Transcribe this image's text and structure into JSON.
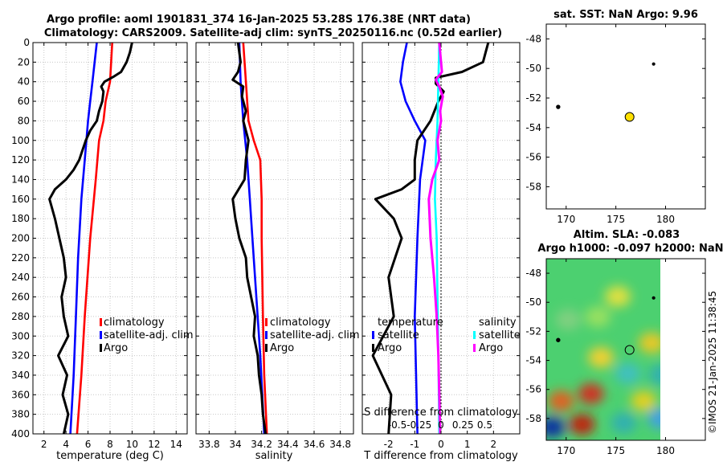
{
  "header": {
    "title_line1": "Argo profile: aoml 1901831_374 16-Jan-2025 53.28S 176.38E (NRT data)",
    "title_line2": "Climatology: CARS2009. Satellite-adj clim: synTS_20250116.nc (0.52d earlier)"
  },
  "watermark": "©IMOS 21-Jan-2025 11:38:45",
  "colors": {
    "climatology": "#ff0000",
    "satellite": "#0000ff",
    "argo": "#000000",
    "sat_salinity": "#00ffff",
    "argo_salinity": "#ff00ff",
    "sst_marker": "#ffe000"
  },
  "chart_data": [
    {
      "type": "line",
      "id": "temperature",
      "xlabel": "temperature (deg C)",
      "xlim": [
        1,
        15
      ],
      "ylim": [
        0,
        400
      ],
      "xticks": [
        2,
        4,
        6,
        8,
        10,
        12,
        14
      ],
      "yticks": [
        0,
        20,
        40,
        60,
        80,
        100,
        120,
        140,
        160,
        180,
        200,
        220,
        240,
        260,
        280,
        300,
        320,
        340,
        360,
        380,
        400
      ],
      "legend": [
        "climatology",
        "satellite-adj. clim",
        "Argo"
      ],
      "legend_loc": "lower-right",
      "series": [
        {
          "name": "climatology",
          "color": "#ff0000",
          "depth": [
            0,
            40,
            60,
            80,
            100,
            140,
            200,
            280,
            340,
            400
          ],
          "values": [
            8.2,
            8.0,
            7.6,
            7.4,
            7.0,
            6.7,
            6.2,
            5.7,
            5.4,
            5.0
          ]
        },
        {
          "name": "satellite-adj. clim",
          "color": "#0000ff",
          "depth": [
            0,
            20,
            40,
            60,
            80,
            120,
            160,
            220,
            280,
            340,
            400
          ],
          "values": [
            6.8,
            6.6,
            6.4,
            6.2,
            6.0,
            5.7,
            5.4,
            5.1,
            4.9,
            4.7,
            4.4
          ]
        },
        {
          "name": "Argo",
          "color": "#000000",
          "depth": [
            0,
            10,
            20,
            30,
            35,
            40,
            45,
            50,
            60,
            70,
            80,
            90,
            100,
            110,
            120,
            130,
            140,
            150,
            160,
            180,
            200,
            220,
            240,
            260,
            280,
            300,
            320,
            340,
            360,
            380,
            400
          ],
          "values": [
            10.0,
            9.8,
            9.5,
            9.0,
            8.3,
            7.5,
            7.2,
            7.4,
            7.3,
            7.0,
            6.8,
            6.2,
            5.8,
            5.5,
            5.2,
            4.7,
            4.0,
            3.0,
            2.5,
            3.0,
            3.4,
            3.8,
            4.0,
            3.6,
            3.8,
            4.2,
            3.3,
            4.1,
            3.7,
            4.2,
            3.8
          ]
        }
      ]
    },
    {
      "type": "line",
      "id": "salinity",
      "xlabel": "salinity",
      "xlim": [
        33.7,
        34.9
      ],
      "ylim": [
        0,
        400
      ],
      "xticks": [
        33.8,
        34,
        34.2,
        34.4,
        34.6,
        34.8
      ],
      "xtick_labels": [
        "33.8",
        "34",
        "34.2",
        "34.4",
        "34.6",
        "34.8"
      ],
      "legend": [
        "climatology",
        "satellite-adj. clim",
        "Argo"
      ],
      "legend_loc": "lower-right",
      "series": [
        {
          "name": "climatology",
          "color": "#ff0000",
          "depth": [
            0,
            40,
            80,
            100,
            120,
            160,
            200,
            280,
            340,
            400
          ],
          "values": [
            34.06,
            34.08,
            34.1,
            34.14,
            34.19,
            34.2,
            34.2,
            34.21,
            34.22,
            34.24
          ]
        },
        {
          "name": "satellite-adj. clim",
          "color": "#0000ff",
          "depth": [
            0,
            40,
            80,
            120,
            160,
            200,
            260,
            320,
            400
          ],
          "values": [
            34.03,
            34.04,
            34.06,
            34.09,
            34.11,
            34.13,
            34.16,
            34.19,
            34.22
          ]
        },
        {
          "name": "Argo",
          "color": "#000000",
          "depth": [
            0,
            10,
            20,
            30,
            38,
            45,
            55,
            70,
            80,
            100,
            120,
            140,
            160,
            180,
            200,
            220,
            240,
            260,
            280,
            300,
            320,
            340,
            360,
            380,
            400
          ],
          "values": [
            34.02,
            34.03,
            34.04,
            34.02,
            33.98,
            34.06,
            34.05,
            34.08,
            34.06,
            34.1,
            34.08,
            34.07,
            33.98,
            34.0,
            34.03,
            34.08,
            34.09,
            34.12,
            34.15,
            34.14,
            34.17,
            34.18,
            34.2,
            34.21,
            34.23
          ]
        }
      ]
    },
    {
      "type": "line",
      "id": "difference",
      "xlabel": "T difference from climatology",
      "top_axis_label": "S difference from climatology",
      "xlim": [
        -3,
        3
      ],
      "ylim": [
        0,
        400
      ],
      "xticks": [
        -2,
        -1,
        0,
        1,
        2
      ],
      "s_xlim": [
        -0.9,
        0.9
      ],
      "s_xticks": [
        -0.5,
        -0.25,
        0,
        0.25,
        0.5
      ],
      "s_xtick_labels": [
        "-0.5",
        "-0.25",
        "0",
        "0.25",
        "0.5"
      ],
      "legend_temperature_title": "temperature",
      "legend_salinity_title": "salinity",
      "legend": [
        "satellite",
        "Argo",
        "satellite",
        "Argo"
      ],
      "legend_loc": "lower-center",
      "series": [
        {
          "name": "T satellite",
          "color": "#0000ff",
          "depth": [
            0,
            20,
            40,
            60,
            80,
            100,
            140,
            200,
            280,
            400
          ],
          "values": [
            -1.3,
            -1.45,
            -1.55,
            -1.35,
            -1.0,
            -0.6,
            -0.8,
            -0.9,
            -1.0,
            -0.9
          ]
        },
        {
          "name": "T Argo",
          "color": "#000000",
          "depth": [
            0,
            10,
            20,
            30,
            36,
            42,
            50,
            60,
            80,
            100,
            120,
            140,
            150,
            160,
            180,
            200,
            240,
            280,
            320,
            360,
            400
          ],
          "values": [
            1.8,
            1.7,
            1.6,
            0.8,
            -0.2,
            -0.2,
            0.1,
            -0.1,
            -0.4,
            -0.9,
            -1.0,
            -1.0,
            -1.5,
            -2.5,
            -1.8,
            -1.5,
            -2.0,
            -1.8,
            -2.6,
            -1.9,
            -2.0
          ]
        },
        {
          "name": "S satellite",
          "color": "#00ffff",
          "depth": [
            0,
            40,
            80,
            120,
            160,
            200,
            260,
            320,
            400
          ],
          "values": [
            -0.02,
            -0.03,
            -0.04,
            -0.06,
            -0.07,
            -0.05,
            -0.04,
            -0.03,
            -0.02
          ]
        },
        {
          "name": "S Argo",
          "color": "#ff00ff",
          "depth": [
            0,
            20,
            30,
            38,
            45,
            55,
            70,
            80,
            100,
            120,
            140,
            160,
            200,
            240,
            280,
            320,
            360,
            400
          ],
          "values": [
            -0.02,
            0.0,
            0.01,
            -0.06,
            -0.02,
            0.02,
            -0.01,
            0.0,
            -0.04,
            -0.02,
            -0.1,
            -0.14,
            -0.12,
            -0.08,
            -0.05,
            -0.03,
            -0.02,
            -0.01
          ]
        }
      ]
    },
    {
      "type": "scatter",
      "id": "sst_map",
      "title": "sat. SST: NaN Argo: 9.96",
      "xlim": [
        168,
        184
      ],
      "ylim": [
        -59.5,
        -47
      ],
      "xticks": [
        170,
        175,
        180
      ],
      "yticks": [
        -48,
        -50,
        -52,
        -54,
        -56,
        -58
      ],
      "points": [
        {
          "label": "profile",
          "x": 176.38,
          "y": -53.28,
          "fill": "#ffe000",
          "size": "large"
        },
        {
          "label": "nearby",
          "x": 169.2,
          "y": -52.6,
          "fill": "#000000",
          "size": "small"
        },
        {
          "label": "nearby",
          "x": 178.8,
          "y": -49.7,
          "fill": "#000000",
          "size": "tiny"
        }
      ]
    },
    {
      "type": "heatmap",
      "id": "sla_map",
      "title_line1": "Altim. SLA: -0.083",
      "title_line2": "Argo h1000: -0.097 h2000: NaN",
      "xlim": [
        168,
        184
      ],
      "ylim": [
        -59.5,
        -47
      ],
      "xticks": [
        170,
        175,
        180
      ],
      "yticks": [
        -48,
        -50,
        -52,
        -54,
        -56,
        -58
      ],
      "data_xlim": [
        168,
        180
      ],
      "data_ylim": [
        -59.5,
        -47
      ],
      "points": [
        {
          "label": "profile",
          "x": 176.38,
          "y": -53.28,
          "fill": "none",
          "size": "large"
        },
        {
          "label": "nearby",
          "x": 169.2,
          "y": -52.6,
          "fill": "#000000",
          "size": "small"
        },
        {
          "label": "nearby",
          "x": 178.8,
          "y": -49.7,
          "fill": "#000000",
          "size": "tiny"
        }
      ],
      "blobs": [
        {
          "x": 169.5,
          "y": -56.8,
          "color": "#e06020"
        },
        {
          "x": 172.5,
          "y": -56.3,
          "color": "#d03020"
        },
        {
          "x": 171.6,
          "y": -58.4,
          "color": "#c02010"
        },
        {
          "x": 168.6,
          "y": -58.6,
          "color": "#1030a0"
        },
        {
          "x": 176.2,
          "y": -54.9,
          "color": "#40c0c0"
        },
        {
          "x": 177.8,
          "y": -56.8,
          "color": "#e0d020"
        },
        {
          "x": 173.5,
          "y": -53.8,
          "color": "#f0d030"
        },
        {
          "x": 178.6,
          "y": -52.8,
          "color": "#e8c828"
        },
        {
          "x": 175.2,
          "y": -49.6,
          "color": "#e0e040"
        },
        {
          "x": 170.2,
          "y": -51.2,
          "color": "#80d080"
        },
        {
          "x": 175.8,
          "y": -58.3,
          "color": "#30b0b0"
        },
        {
          "x": 179.5,
          "y": -58.0,
          "color": "#40a0e0"
        },
        {
          "x": 179.6,
          "y": -55.0,
          "color": "#30b0b0"
        },
        {
          "x": 173.2,
          "y": -51.0,
          "color": "#98e060"
        }
      ]
    }
  ]
}
